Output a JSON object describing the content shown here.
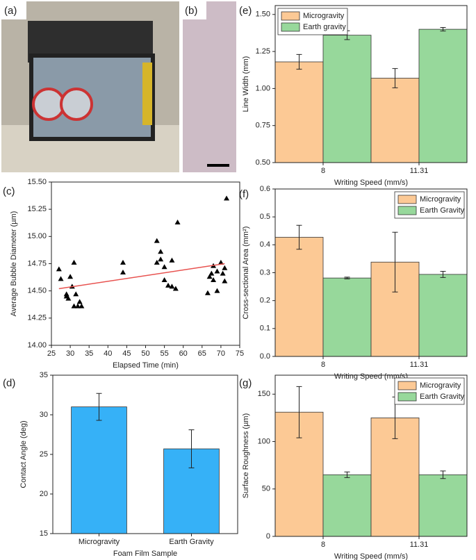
{
  "images": [
    {
      "label": "(a)"
    },
    {
      "label": "(b)"
    }
  ],
  "chart_data": [
    {
      "type": "scatter",
      "label": "(c)",
      "xlabel": "Elapsed Time (min)",
      "ylabel": "Average Bubble Diameter (µm)",
      "color": "#000000",
      "x": [
        27,
        27.5,
        29,
        29.5,
        29,
        30,
        30.5,
        31,
        31,
        31.5,
        32,
        32.5,
        33,
        44,
        44,
        53,
        53,
        54,
        54,
        55,
        55,
        56,
        57,
        57,
        58,
        58.5,
        66.5,
        67,
        67.5,
        68,
        68,
        69,
        69,
        70,
        70.5,
        71,
        71,
        71.5
      ],
      "values": [
        14.7,
        14.61,
        14.45,
        14.43,
        14.47,
        14.63,
        14.54,
        14.76,
        14.36,
        14.47,
        14.36,
        14.4,
        14.36,
        14.76,
        14.67,
        14.96,
        14.76,
        14.86,
        14.79,
        14.72,
        14.6,
        14.55,
        14.54,
        14.78,
        14.52,
        15.13,
        14.48,
        14.63,
        14.66,
        14.73,
        14.6,
        14.68,
        14.5,
        14.76,
        14.66,
        14.59,
        14.71,
        15.35
      ],
      "trendline": {
        "color": "#e8524f",
        "x": [
          27,
          71
        ],
        "values": [
          14.52,
          14.75
        ]
      },
      "xlim": [
        25,
        75
      ],
      "xticks": [
        25,
        30,
        35,
        40,
        45,
        50,
        55,
        60,
        65,
        70,
        75
      ],
      "ylim": [
        14,
        15.5
      ],
      "yticks": [
        {
          "value": 14,
          "label": "14.00"
        },
        {
          "value": 14.25,
          "label": "14.25"
        },
        {
          "value": 14.5,
          "label": "14.50"
        },
        {
          "value": 14.75,
          "label": "14.75"
        },
        {
          "value": 15,
          "label": "15.00"
        },
        {
          "value": 15.25,
          "label": "15.25"
        },
        {
          "value": 15.5,
          "label": "15.50"
        }
      ]
    },
    {
      "type": "bar",
      "label": "(d)",
      "xlabel": "Foam Film Sample",
      "ylabel": "Contact Angle (deg)",
      "categories": [
        "Microgravity",
        "Earth Gravity"
      ],
      "series": [
        {
          "color": "#36b1f7",
          "values": [
            31.0,
            25.7
          ],
          "errors": [
            1.7,
            2.4
          ]
        }
      ],
      "ylim": [
        15,
        35
      ],
      "yticks": [
        15,
        20,
        25,
        30,
        35
      ]
    },
    {
      "type": "bar",
      "label": "(e)",
      "xlabel": "Writing Speed (mm/s)",
      "ylabel": "Line Width (mm)",
      "legend": "top-left",
      "categories": [
        "8",
        "11.31"
      ],
      "series": [
        {
          "name": "Microgravity",
          "color": "#fcc995",
          "values": [
            1.18,
            1.07
          ],
          "errors": [
            0.05,
            0.065
          ]
        },
        {
          "name": "Earth gravity",
          "color": "#97d89b",
          "values": [
            1.36,
            1.4
          ],
          "errors": [
            0.03,
            0.012
          ]
        }
      ],
      "ylim": [
        0.5,
        1.56
      ],
      "yticks": [
        {
          "value": 0.5,
          "label": "0.50"
        },
        0.75,
        {
          "value": 1,
          "label": "1.00"
        },
        1.25,
        {
          "value": 1.5,
          "label": "1.50"
        }
      ]
    },
    {
      "type": "bar",
      "label": "(f)",
      "xlabel": "Writing Speed (mm/s)",
      "ylabel": "Cross-sectional Area (mm²)",
      "legend": "top-right",
      "categories": [
        "8",
        "11.31"
      ],
      "series": [
        {
          "name": "Microgravity",
          "color": "#fcc995",
          "values": [
            0.427,
            0.338
          ],
          "errors": [
            0.043,
            0.107
          ]
        },
        {
          "name": "Earth Gravity",
          "color": "#97d89b",
          "values": [
            0.281,
            0.294
          ],
          "errors": [
            0.003,
            0.011
          ]
        }
      ],
      "ylim": [
        0,
        0.6
      ],
      "yticks": [
        {
          "value": 0,
          "label": "0.0"
        },
        0.1,
        0.2,
        0.3,
        0.4,
        0.5,
        0.6
      ]
    },
    {
      "type": "bar",
      "label": "(g)",
      "xlabel": "Writing Speed (mm/s)",
      "ylabel": "Surface Roughness (µm)",
      "legend": "top-right",
      "categories": [
        "8",
        "11.31"
      ],
      "series": [
        {
          "name": "Microgravity",
          "color": "#fcc995",
          "values": [
            131,
            125
          ],
          "errors": [
            27,
            22
          ]
        },
        {
          "name": "Earth Gravity",
          "color": "#97d89b",
          "values": [
            65,
            65
          ],
          "errors": [
            3,
            4
          ]
        }
      ],
      "ylim": [
        0,
        170
      ],
      "yticks": [
        0,
        50,
        100,
        150
      ]
    }
  ]
}
